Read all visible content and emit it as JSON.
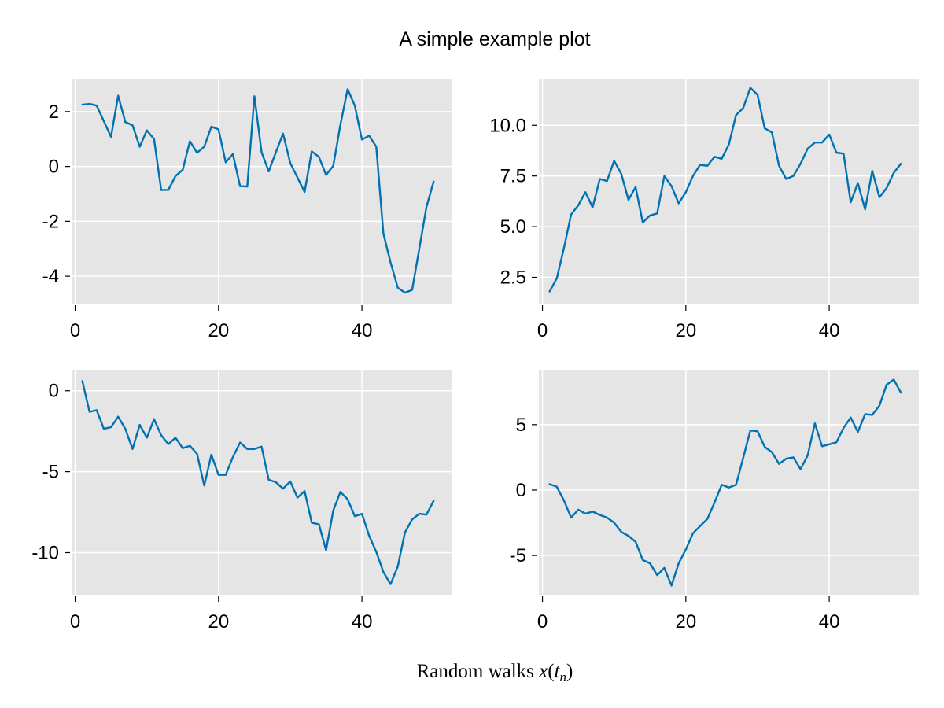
{
  "title": "A simple example plot",
  "caption": "Random walks x(t_n)",
  "colors": {
    "series": "#0072b2",
    "panel_background": "#e5e5e5",
    "grid": "#ffffff"
  },
  "chart_data": [
    {
      "type": "line",
      "grid": true,
      "x": [
        1,
        2,
        3,
        4,
        5,
        6,
        7,
        8,
        9,
        10,
        11,
        12,
        13,
        14,
        15,
        16,
        17,
        18,
        19,
        20,
        21,
        22,
        23,
        24,
        25,
        26,
        27,
        28,
        29,
        30,
        31,
        32,
        33,
        34,
        35,
        36,
        37,
        38,
        39,
        40,
        41,
        42,
        43,
        44,
        45,
        46,
        47,
        48,
        49,
        50
      ],
      "xlim": [
        -0.5,
        52.5
      ],
      "xticks": [
        0,
        20,
        40
      ],
      "xtick_labels": [
        "0",
        "20",
        "40"
      ],
      "ylim": [
        -5.0,
        3.2
      ],
      "yticks": [
        -4,
        -2,
        0,
        2
      ],
      "ytick_labels": [
        "-4",
        "-2",
        "0",
        "2"
      ],
      "values": [
        2.25,
        2.28,
        2.22,
        1.65,
        1.08,
        2.58,
        1.62,
        1.5,
        0.72,
        1.32,
        1.0,
        -0.86,
        -0.85,
        -0.35,
        -0.12,
        0.92,
        0.5,
        0.72,
        1.45,
        1.35,
        0.15,
        0.45,
        -0.72,
        -0.73,
        2.56,
        0.52,
        -0.18,
        0.52,
        1.2,
        0.12,
        -0.4,
        -0.93,
        0.55,
        0.35,
        -0.31,
        0.02,
        1.52,
        2.82,
        2.22,
        0.98,
        1.12,
        0.72,
        -2.45,
        -3.5,
        -4.42,
        -4.6,
        -4.5,
        -3.0,
        -1.48,
        -0.55
      ]
    },
    {
      "type": "line",
      "grid": true,
      "x": [
        1,
        2,
        3,
        4,
        5,
        6,
        7,
        8,
        9,
        10,
        11,
        12,
        13,
        14,
        15,
        16,
        17,
        18,
        19,
        20,
        21,
        22,
        23,
        24,
        25,
        26,
        27,
        28,
        29,
        30,
        31,
        32,
        33,
        34,
        35,
        36,
        37,
        38,
        39,
        40,
        41,
        42,
        43,
        44,
        45,
        46,
        47,
        48,
        49,
        50
      ],
      "xlim": [
        -0.5,
        52.5
      ],
      "xticks": [
        0,
        20,
        40
      ],
      "xtick_labels": [
        "0",
        "20",
        "40"
      ],
      "ylim": [
        1.2,
        12.3
      ],
      "yticks": [
        2.5,
        5.0,
        7.5,
        10.0
      ],
      "ytick_labels": [
        "2.5",
        "5.0",
        "7.5",
        "10.0"
      ],
      "values": [
        1.8,
        2.45,
        3.95,
        5.6,
        6.05,
        6.7,
        5.95,
        7.35,
        7.25,
        8.25,
        7.6,
        6.32,
        6.95,
        5.2,
        5.55,
        5.65,
        7.5,
        7.0,
        6.15,
        6.7,
        7.5,
        8.05,
        8.0,
        8.45,
        8.35,
        9.05,
        10.5,
        10.85,
        11.85,
        11.5,
        9.85,
        9.65,
        8.0,
        7.35,
        7.5,
        8.1,
        8.85,
        9.15,
        9.15,
        9.55,
        8.65,
        8.6,
        6.2,
        7.15,
        5.85,
        7.75,
        6.45,
        6.9,
        7.65,
        8.1
      ]
    },
    {
      "type": "line",
      "grid": true,
      "x": [
        1,
        2,
        3,
        4,
        5,
        6,
        7,
        8,
        9,
        10,
        11,
        12,
        13,
        14,
        15,
        16,
        17,
        18,
        19,
        20,
        21,
        22,
        23,
        24,
        25,
        26,
        27,
        28,
        29,
        30,
        31,
        32,
        33,
        34,
        35,
        36,
        37,
        38,
        39,
        40,
        41,
        42,
        43,
        44,
        45,
        46,
        47,
        48,
        49,
        50
      ],
      "xlim": [
        -0.5,
        52.5
      ],
      "xticks": [
        0,
        20,
        40
      ],
      "xtick_labels": [
        "0",
        "20",
        "40"
      ],
      "ylim": [
        -12.6,
        1.3
      ],
      "yticks": [
        -10,
        -5,
        0
      ],
      "ytick_labels": [
        "-10",
        "-5",
        "0"
      ],
      "values": [
        0.6,
        -1.3,
        -1.2,
        -2.35,
        -2.25,
        -1.6,
        -2.35,
        -3.6,
        -2.1,
        -2.9,
        -1.75,
        -2.75,
        -3.3,
        -2.9,
        -3.55,
        -3.4,
        -3.9,
        -5.85,
        -3.95,
        -5.2,
        -5.2,
        -4.1,
        -3.2,
        -3.6,
        -3.6,
        -3.45,
        -5.5,
        -5.65,
        -6.05,
        -5.6,
        -6.6,
        -6.2,
        -8.15,
        -8.25,
        -9.85,
        -7.4,
        -6.25,
        -6.7,
        -7.75,
        -7.6,
        -8.95,
        -9.95,
        -11.2,
        -11.95,
        -10.85,
        -8.75,
        -7.95,
        -7.6,
        -7.65,
        -6.8
      ]
    },
    {
      "type": "line",
      "grid": true,
      "x": [
        1,
        2,
        3,
        4,
        5,
        6,
        7,
        8,
        9,
        10,
        11,
        12,
        13,
        14,
        15,
        16,
        17,
        18,
        19,
        20,
        21,
        22,
        23,
        24,
        25,
        26,
        27,
        28,
        29,
        30,
        31,
        32,
        33,
        34,
        35,
        36,
        37,
        38,
        39,
        40,
        41,
        42,
        43,
        44,
        45,
        46,
        47,
        48,
        49,
        50
      ],
      "xlim": [
        -0.5,
        52.5
      ],
      "xticks": [
        0,
        20,
        40
      ],
      "xtick_labels": [
        "0",
        "20",
        "40"
      ],
      "ylim": [
        -8.0,
        9.2
      ],
      "yticks": [
        -5,
        0,
        5
      ],
      "ytick_labels": [
        "-5",
        "0",
        "5"
      ],
      "values": [
        0.45,
        0.25,
        -0.8,
        -2.1,
        -1.5,
        -1.8,
        -1.65,
        -1.9,
        -2.1,
        -2.5,
        -3.2,
        -3.5,
        -3.95,
        -5.35,
        -5.6,
        -6.5,
        -5.95,
        -7.3,
        -5.6,
        -4.55,
        -3.3,
        -2.75,
        -2.2,
        -0.95,
        0.4,
        0.2,
        0.4,
        2.45,
        4.55,
        4.5,
        3.3,
        2.9,
        2.0,
        2.4,
        2.5,
        1.6,
        2.65,
        5.1,
        3.35,
        3.5,
        3.65,
        4.75,
        5.55,
        4.45,
        5.8,
        5.75,
        6.45,
        8.05,
        8.45,
        7.45
      ]
    }
  ]
}
